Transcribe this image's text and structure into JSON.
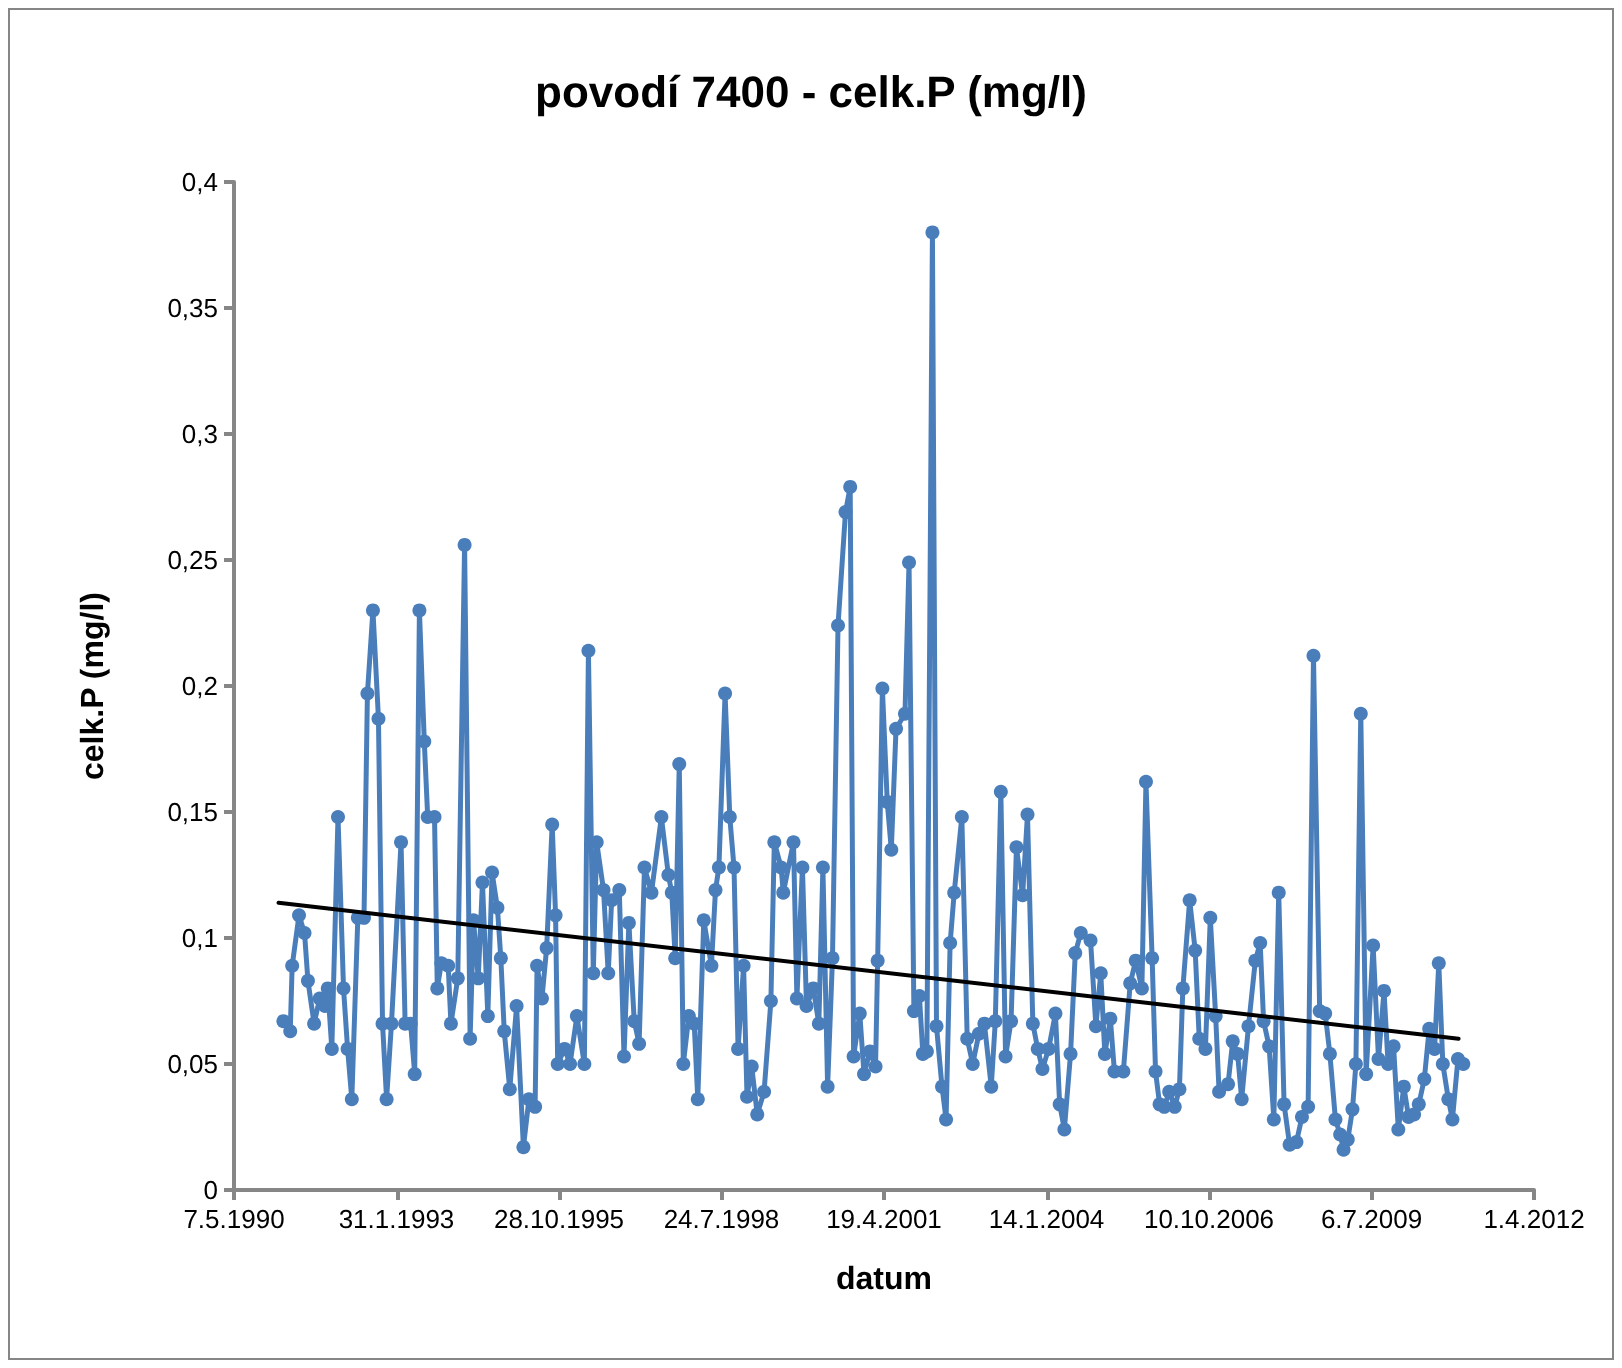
{
  "chart_data": {
    "type": "line",
    "title": "povodí 7400 - celk.P (mg/l)",
    "xlabel": "datum",
    "ylabel": "celk.P (mg/l)",
    "xlim": [
      "1990-05-07",
      "2012-04-01"
    ],
    "xticks": [
      {
        "value": "1990-05-07",
        "label": "7.5.1990"
      },
      {
        "value": "1993-01-31",
        "label": "31.1.1993"
      },
      {
        "value": "1995-10-28",
        "label": "28.10.1995"
      },
      {
        "value": "1998-07-24",
        "label": "24.7.1998"
      },
      {
        "value": "2001-04-19",
        "label": "19.4.2001"
      },
      {
        "value": "2004-01-14",
        "label": "14.1.2004"
      },
      {
        "value": "2006-10-10",
        "label": "10.10.2006"
      },
      {
        "value": "2009-07-06",
        "label": "6.7.2009"
      },
      {
        "value": "2012-04-01",
        "label": "1.4.2012"
      }
    ],
    "ylim": [
      0,
      0.4
    ],
    "yticks": [
      {
        "value": 0,
        "label": "0"
      },
      {
        "value": 0.05,
        "label": "0,05"
      },
      {
        "value": 0.1,
        "label": "0,1"
      },
      {
        "value": 0.15,
        "label": "0,15"
      },
      {
        "value": 0.2,
        "label": "0,2"
      },
      {
        "value": 0.25,
        "label": "0,25"
      },
      {
        "value": 0.3,
        "label": "0,3"
      },
      {
        "value": 0.35,
        "label": "0,35"
      },
      {
        "value": 0.4,
        "label": "0,4"
      }
    ],
    "grid": false,
    "series": [
      {
        "color": "#4a7ebb",
        "marker": "circle",
        "x": [
          "1991-03-07",
          "1991-04-18",
          "1991-04-30",
          "1991-06-11",
          "1991-07-15",
          "1991-08-05",
          "1991-09-12",
          "1991-10-16",
          "1991-11-18",
          "1991-12-05",
          "1991-12-30",
          "1992-02-06",
          "1992-03-11",
          "1992-04-05",
          "1992-05-01",
          "1992-06-07",
          "1992-07-15",
          "1992-08-05",
          "1992-09-08",
          "1992-10-12",
          "1992-11-06",
          "1992-12-01",
          "1992-12-31",
          "1993-02-28",
          "1993-03-25",
          "1993-04-28",
          "1993-05-23",
          "1993-06-21",
          "1993-07-21",
          "1993-08-11",
          "1993-09-22",
          "1993-10-09",
          "1993-11-03",
          "1993-12-15",
          "1994-01-01",
          "1994-02-12",
          "1994-03-26",
          "1994-04-29",
          "1994-05-20",
          "1994-06-18",
          "1994-07-14",
          "1994-08-16",
          "1994-09-11",
          "1994-10-14",
          "1994-11-04",
          "1994-11-25",
          "1994-12-29",
          "1995-02-09",
          "1995-03-23",
          "1995-04-26",
          "1995-06-03",
          "1995-06-15",
          "1995-07-15",
          "1995-08-13",
          "1995-09-16",
          "1995-10-07",
          "1995-10-20",
          "1995-12-01",
          "1996-01-04",
          "1996-02-15",
          "1996-04-01",
          "1996-04-26",
          "1996-05-26",
          "1996-06-16",
          "1996-07-28",
          "1996-08-26",
          "1996-09-16",
          "1996-11-02",
          "1996-12-01",
          "1996-12-31",
          "1997-02-02",
          "1997-03-04",
          "1997-04-06",
          "1997-05-19",
          "1997-07-19",
          "1997-08-31",
          "1997-09-21",
          "1997-10-12",
          "1997-11-06",
          "1997-12-01",
          "1998-01-04",
          "1998-02-06",
          "1998-02-28",
          "1998-04-06",
          "1998-05-23",
          "1998-06-17",
          "1998-07-08",
          "1998-08-15",
          "1998-09-13",
          "1998-10-09",
          "1998-11-03",
          "1998-12-07",
          "1998-12-28",
          "1999-01-26",
          "1999-03-01",
          "1999-04-12",
          "1999-05-24",
          "1999-06-14",
          "1999-07-26",
          "1999-08-08",
          "1999-10-10",
          "1999-10-31",
          "1999-12-04",
          "1999-12-29",
          "2000-02-09",
          "2000-03-14",
          "2000-04-08",
          "2000-05-07",
          "2000-06-06",
          "2000-07-10",
          "2000-08-25",
          "2000-09-23",
          "2000-10-14",
          "2000-11-21",
          "2000-12-17",
          "2001-01-23",
          "2001-02-26",
          "2001-03-11",
          "2001-04-09",
          "2001-05-09",
          "2001-06-03",
          "2001-07-02",
          "2001-08-26",
          "2001-09-20",
          "2001-10-20",
          "2001-11-23",
          "2001-12-14",
          "2002-01-08",
          "2002-02-11",
          "2002-03-08",
          "2002-04-11",
          "2002-05-06",
          "2002-05-31",
          "2002-06-25",
          "2002-08-11",
          "2002-09-13",
          "2002-10-17",
          "2002-11-24",
          "2002-12-28",
          "2003-02-08",
          "2003-03-05",
          "2003-04-08",
          "2003-05-07",
          "2003-06-10",
          "2003-07-13",
          "2003-08-20",
          "2003-09-19",
          "2003-10-22",
          "2003-11-21",
          "2003-12-20",
          "2004-01-27",
          "2004-03-09",
          "2004-04-04",
          "2004-05-03",
          "2004-06-10",
          "2004-07-09",
          "2004-08-12",
          "2004-10-11",
          "2004-11-13",
          "2004-12-13",
          "2005-01-07",
          "2005-02-10",
          "2005-03-07",
          "2005-05-01",
          "2005-06-12",
          "2005-07-16",
          "2005-08-23",
          "2005-09-17",
          "2005-10-25",
          "2005-11-15",
          "2005-12-10",
          "2006-01-08",
          "2006-02-07",
          "2006-03-13",
          "2006-04-11",
          "2006-05-02",
          "2006-06-13",
          "2006-07-17",
          "2006-08-11",
          "2006-09-18",
          "2006-10-18",
          "2006-11-20",
          "2006-12-11",
          "2007-02-04",
          "2007-03-05",
          "2007-04-04",
          "2007-04-29",
          "2007-06-10",
          "2007-07-22",
          "2007-08-21",
          "2007-09-11",
          "2007-10-15",
          "2007-11-13",
          "2007-12-13",
          "2008-01-15",
          "2008-02-18",
          "2008-03-31",
          "2008-05-04",
          "2008-06-11",
          "2008-07-14",
          "2008-08-21",
          "2008-09-24",
          "2008-10-23",
          "2008-11-26",
          "2008-12-25",
          "2009-01-15",
          "2009-02-10",
          "2009-03-11",
          "2009-04-01",
          "2009-05-01",
          "2009-06-03",
          "2009-07-16",
          "2009-08-18",
          "2009-09-21",
          "2009-10-16",
          "2009-11-19",
          "2009-12-18",
          "2010-01-21",
          "2010-02-19",
          "2010-03-25",
          "2010-04-23",
          "2010-05-27",
          "2010-06-26",
          "2010-07-29",
          "2010-08-24",
          "2010-09-18",
          "2010-10-22",
          "2010-11-16",
          "2010-12-20",
          "2011-01-22"
        ],
        "values": [
          0.067,
          0.063,
          0.089,
          0.109,
          0.102,
          0.083,
          0.066,
          0.076,
          0.073,
          0.08,
          0.056,
          0.148,
          0.08,
          0.056,
          0.036,
          0.108,
          0.108,
          0.197,
          0.23,
          0.187,
          0.066,
          0.036,
          0.066,
          0.138,
          0.066,
          0.066,
          0.046,
          0.23,
          0.178,
          0.148,
          0.148,
          0.08,
          0.09,
          0.089,
          0.066,
          0.084,
          0.256,
          0.06,
          0.107,
          0.084,
          0.122,
          0.069,
          0.126,
          0.112,
          0.092,
          0.063,
          0.04,
          0.073,
          0.017,
          0.036,
          0.033,
          0.089,
          0.076,
          0.096,
          0.145,
          0.109,
          0.05,
          0.056,
          0.05,
          0.069,
          0.05,
          0.214,
          0.086,
          0.138,
          0.119,
          0.086,
          0.115,
          0.119,
          0.053,
          0.106,
          0.067,
          0.058,
          0.128,
          0.118,
          0.148,
          0.125,
          0.118,
          0.092,
          0.169,
          0.05,
          0.069,
          0.066,
          0.036,
          0.107,
          0.089,
          0.119,
          0.128,
          0.197,
          0.148,
          0.128,
          0.056,
          0.089,
          0.037,
          0.049,
          0.03,
          0.039,
          0.075,
          0.138,
          0.128,
          0.118,
          0.138,
          0.076,
          0.128,
          0.073,
          0.08,
          0.066,
          0.128,
          0.041,
          0.092,
          0.224,
          0.269,
          0.279,
          0.053,
          0.07,
          0.046,
          0.055,
          0.049,
          0.091,
          0.199,
          0.154,
          0.135,
          0.183,
          0.189,
          0.249,
          0.071,
          0.077,
          0.054,
          0.055,
          0.38,
          0.065,
          0.041,
          0.028,
          0.098,
          0.118,
          0.148,
          0.06,
          0.05,
          0.062,
          0.066,
          0.041,
          0.067,
          0.158,
          0.053,
          0.067,
          0.136,
          0.117,
          0.149,
          0.066,
          0.056,
          0.048,
          0.056,
          0.07,
          0.034,
          0.024,
          0.054,
          0.094,
          0.102,
          0.099,
          0.065,
          0.086,
          0.054,
          0.068,
          0.047,
          0.047,
          0.082,
          0.091,
          0.08,
          0.162,
          0.092,
          0.047,
          0.034,
          0.033,
          0.039,
          0.033,
          0.04,
          0.08,
          0.115,
          0.095,
          0.06,
          0.056,
          0.108,
          0.069,
          0.039,
          0.042,
          0.059,
          0.054,
          0.036,
          0.065,
          0.091,
          0.098,
          0.067,
          0.057,
          0.028,
          0.118,
          0.034,
          0.018,
          0.019,
          0.029,
          0.033,
          0.212,
          0.071,
          0.07,
          0.054,
          0.028,
          0.022,
          0.016,
          0.02,
          0.032,
          0.05,
          0.189,
          0.046,
          0.097,
          0.052,
          0.079,
          0.05,
          0.057,
          0.024,
          0.041,
          0.029,
          0.03,
          0.034,
          0.044,
          0.064,
          0.056,
          0.09,
          0.05,
          0.036,
          0.028,
          0.052,
          0.05
        ]
      },
      {
        "color": "#000000",
        "marker": "none",
        "x": [
          "1991-02-05",
          "2010-12-24"
        ],
        "values": [
          0.114,
          0.06
        ]
      }
    ]
  }
}
